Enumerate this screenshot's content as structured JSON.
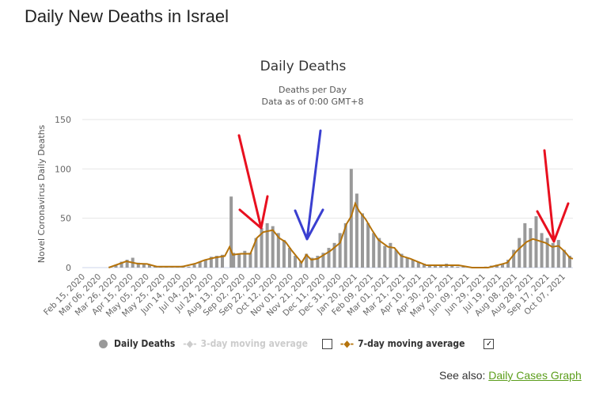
{
  "page_title": "Daily New Deaths in Israel",
  "see_also": {
    "label": "See also:",
    "link": "Daily Cases Graph"
  },
  "legend": {
    "daily": "Daily Deaths",
    "ma3": "3-day moving average",
    "ma7": "7-day moving average",
    "ma3_checked": false,
    "ma7_checked": true,
    "check_mark": "✓"
  },
  "colors": {
    "bars": "#999999",
    "ma7": "#b5730b",
    "ma3": "#cccccc",
    "red_arrow": "#e8101f",
    "blue_arrow": "#3a3fd0"
  },
  "chart_data": {
    "type": "bar",
    "title": "Daily Deaths",
    "subtitle": [
      "Deaths per Day",
      "Data as of 0:00 GMT+8"
    ],
    "ylabel": "Novel Coronavirus Daily Deaths",
    "xlabel": "",
    "ylim": [
      0,
      150
    ],
    "yticks": [
      "0",
      "50",
      "100",
      "150"
    ],
    "x_start": "Feb 15, 2020",
    "x_days": 613,
    "xtick_step_days": 20,
    "xticks": [
      "Feb 15, 2020",
      "Mar 06, 2020",
      "Mar 26, 2020",
      "Apr 15, 2020",
      "May 05, 2020",
      "May 25, 2020",
      "Jun 14, 2020",
      "Jul 04, 2020",
      "Jul 24, 2020",
      "Aug 13, 2020",
      "Sep 02, 2020",
      "Sep 22, 2020",
      "Oct 12, 2020",
      "Nov 01, 2020",
      "Nov 21, 2020",
      "Dec 11, 2020",
      "Dec 31, 2020",
      "Jan 20, 2021",
      "Feb 09, 2021",
      "Mar 01, 2021",
      "Mar 21, 2021",
      "Apr 10, 2021",
      "Apr 30, 2021",
      "May 20, 2021",
      "Jun 09, 2021",
      "Jun 29, 2021",
      "Jul 19, 2021",
      "Aug 08, 2021",
      "Aug 28, 2021",
      "Sep 17, 2021",
      "Oct 07, 2021"
    ],
    "daily_deaths_day_value": [
      [
        35,
        1
      ],
      [
        42,
        3
      ],
      [
        49,
        6
      ],
      [
        56,
        8
      ],
      [
        63,
        10
      ],
      [
        70,
        5
      ],
      [
        77,
        4
      ],
      [
        84,
        3
      ],
      [
        91,
        2
      ],
      [
        98,
        1
      ],
      [
        105,
        1
      ],
      [
        112,
        1
      ],
      [
        119,
        1
      ],
      [
        126,
        2
      ],
      [
        133,
        1
      ],
      [
        140,
        3
      ],
      [
        147,
        6
      ],
      [
        154,
        8
      ],
      [
        161,
        11
      ],
      [
        168,
        12
      ],
      [
        175,
        13
      ],
      [
        186,
        72
      ],
      [
        189,
        15
      ],
      [
        196,
        14
      ],
      [
        203,
        17
      ],
      [
        210,
        15
      ],
      [
        217,
        30
      ],
      [
        224,
        40
      ],
      [
        231,
        45
      ],
      [
        238,
        42
      ],
      [
        245,
        35
      ],
      [
        252,
        28
      ],
      [
        259,
        20
      ],
      [
        266,
        12
      ],
      [
        273,
        6
      ],
      [
        280,
        14
      ],
      [
        287,
        10
      ],
      [
        294,
        12
      ],
      [
        301,
        15
      ],
      [
        308,
        20
      ],
      [
        315,
        25
      ],
      [
        322,
        35
      ],
      [
        329,
        45
      ],
      [
        336,
        100
      ],
      [
        343,
        75
      ],
      [
        350,
        55
      ],
      [
        357,
        45
      ],
      [
        364,
        35
      ],
      [
        371,
        30
      ],
      [
        378,
        22
      ],
      [
        385,
        25
      ],
      [
        392,
        18
      ],
      [
        399,
        14
      ],
      [
        406,
        10
      ],
      [
        413,
        8
      ],
      [
        420,
        6
      ],
      [
        427,
        4
      ],
      [
        434,
        3
      ],
      [
        441,
        3
      ],
      [
        448,
        2
      ],
      [
        455,
        4
      ],
      [
        462,
        2
      ],
      [
        469,
        1
      ],
      [
        476,
        1
      ],
      [
        504,
        1
      ],
      [
        511,
        2
      ],
      [
        518,
        3
      ],
      [
        525,
        4
      ],
      [
        532,
        8
      ],
      [
        539,
        18
      ],
      [
        546,
        30
      ],
      [
        553,
        45
      ],
      [
        560,
        40
      ],
      [
        567,
        52
      ],
      [
        574,
        35
      ],
      [
        581,
        30
      ],
      [
        588,
        25
      ],
      [
        595,
        28
      ],
      [
        602,
        18
      ],
      [
        609,
        12
      ]
    ],
    "ma7_day_value": [
      [
        33,
        0
      ],
      [
        55,
        6.4
      ],
      [
        69,
        4
      ],
      [
        81,
        3.7
      ],
      [
        93,
        1
      ],
      [
        109,
        1
      ],
      [
        125,
        1
      ],
      [
        141,
        4
      ],
      [
        153,
        7.7
      ],
      [
        165,
        10
      ],
      [
        178,
        11.7
      ],
      [
        184,
        21
      ],
      [
        188,
        13
      ],
      [
        198,
        14
      ],
      [
        210,
        14
      ],
      [
        218,
        30
      ],
      [
        226,
        36
      ],
      [
        238,
        38
      ],
      [
        246,
        30
      ],
      [
        254,
        26
      ],
      [
        262,
        17
      ],
      [
        270,
        9
      ],
      [
        274,
        5
      ],
      [
        280,
        13
      ],
      [
        286,
        8
      ],
      [
        294,
        9
      ],
      [
        302,
        13
      ],
      [
        310,
        17
      ],
      [
        322,
        25
      ],
      [
        330,
        44
      ],
      [
        336,
        52
      ],
      [
        341,
        65
      ],
      [
        346,
        57
      ],
      [
        354,
        49
      ],
      [
        362,
        38
      ],
      [
        370,
        28
      ],
      [
        382,
        21
      ],
      [
        390,
        20
      ],
      [
        398,
        12
      ],
      [
        410,
        9
      ],
      [
        422,
        5
      ],
      [
        430,
        2.4
      ],
      [
        450,
        2.4
      ],
      [
        470,
        2.4
      ],
      [
        487,
        0
      ],
      [
        507,
        0
      ],
      [
        519,
        2.4
      ],
      [
        531,
        5
      ],
      [
        543,
        17
      ],
      [
        555,
        26
      ],
      [
        563,
        29
      ],
      [
        567,
        28
      ],
      [
        579,
        25
      ],
      [
        587,
        21
      ],
      [
        595,
        22
      ],
      [
        603,
        16
      ],
      [
        609,
        10
      ],
      [
        613,
        9
      ]
    ]
  }
}
